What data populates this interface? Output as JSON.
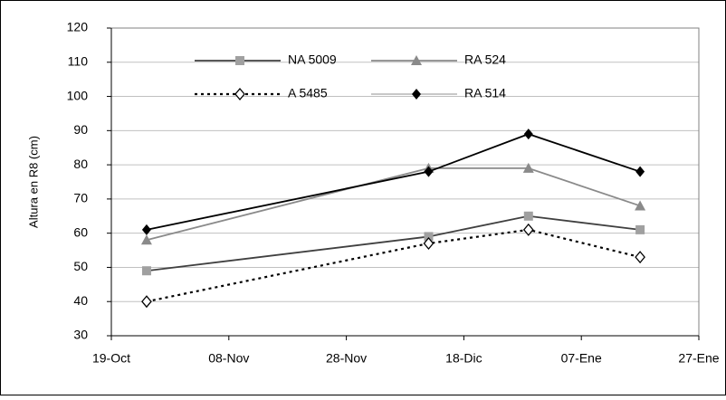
{
  "chart_data": {
    "type": "line",
    "y_label": "Altura en R8 (cm)",
    "xlim": [
      0,
      100
    ],
    "xticks": [
      {
        "value": 0,
        "label": "19-Oct"
      },
      {
        "value": 20,
        "label": "08-Nov"
      },
      {
        "value": 40,
        "label": "28-Nov"
      },
      {
        "value": 60,
        "label": "18-Dic"
      },
      {
        "value": 80,
        "label": "07-Ene"
      },
      {
        "value": 100,
        "label": "27-Ene"
      }
    ],
    "ylim": [
      30,
      120
    ],
    "yticks": [
      30,
      40,
      50,
      60,
      70,
      80,
      90,
      100,
      110,
      120
    ],
    "grid": true,
    "x": [
      6,
      54,
      71,
      90
    ],
    "series": [
      {
        "name": "NA 5009",
        "color": "#404040",
        "marker": "square",
        "marker_color": "#a0a0a0",
        "dashed": false,
        "values": [
          49,
          59,
          65,
          61
        ]
      },
      {
        "name": "RA 524",
        "color": "#8a8a8a",
        "marker": "triangle",
        "marker_color": "#8a8a8a",
        "dashed": false,
        "values": [
          58,
          79,
          79,
          68
        ]
      },
      {
        "name": "A 5485",
        "color": "#000000",
        "marker": "open-diamond",
        "marker_color": "#000000",
        "dashed": true,
        "values": [
          40,
          57,
          61,
          53
        ]
      },
      {
        "name": "RA 514",
        "color": "#000000",
        "marker": "diamond",
        "marker_color": "#000000",
        "dashed": false,
        "values": [
          61,
          78,
          89,
          78
        ]
      }
    ]
  }
}
